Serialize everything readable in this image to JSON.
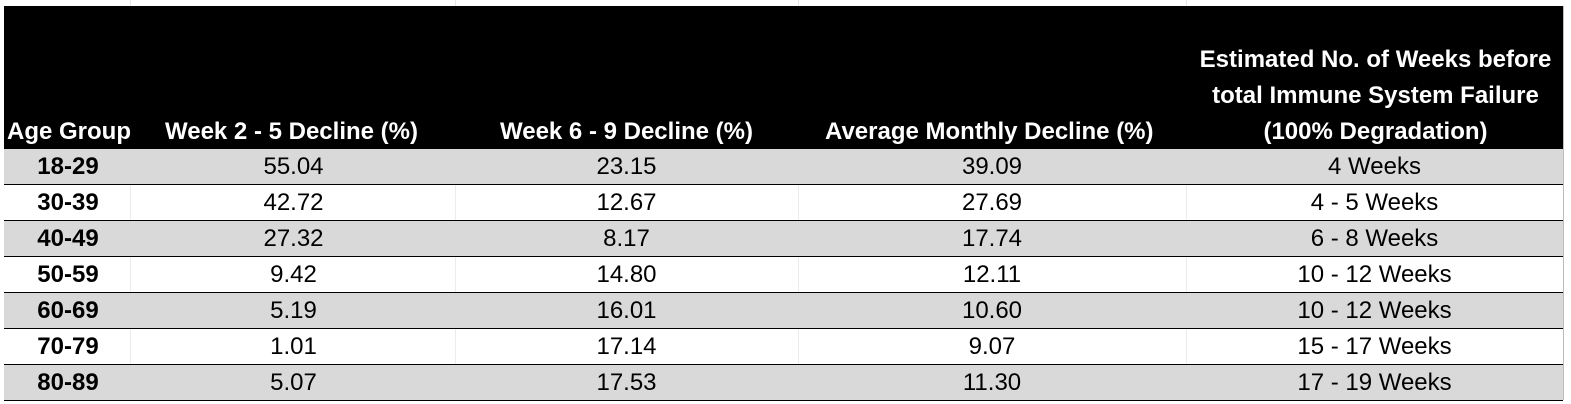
{
  "table": {
    "headers": [
      "Age Group",
      "Week 2 - 5 Decline (%)",
      "Week 6 - 9 Decline (%)",
      "Average Monthly Decline (%)",
      [
        "Estimated No. of Weeks before",
        "total Immune System Failure",
        "(100% Degradation)"
      ]
    ],
    "rows": [
      [
        "18-29",
        "55.04",
        "23.15",
        "39.09",
        "4 Weeks"
      ],
      [
        "30-39",
        "42.72",
        "12.67",
        "27.69",
        "4 - 5 Weeks"
      ],
      [
        "40-49",
        "27.32",
        "8.17",
        "17.74",
        "6 - 8 Weeks"
      ],
      [
        "50-59",
        "9.42",
        "14.80",
        "12.11",
        "10 - 12 Weeks"
      ],
      [
        "60-69",
        "5.19",
        "16.01",
        "10.60",
        "10 - 12 Weeks"
      ],
      [
        "70-79",
        "1.01",
        "17.14",
        "9.07",
        "15 - 17 Weeks"
      ],
      [
        "80-89",
        "5.07",
        "17.53",
        "11.30",
        "17 - 19 Weeks"
      ]
    ]
  },
  "colors": {
    "header_bg": "#000000",
    "header_text": "#ffffff",
    "row_shade": "#d9d9d9",
    "row_plain": "#ffffff"
  }
}
